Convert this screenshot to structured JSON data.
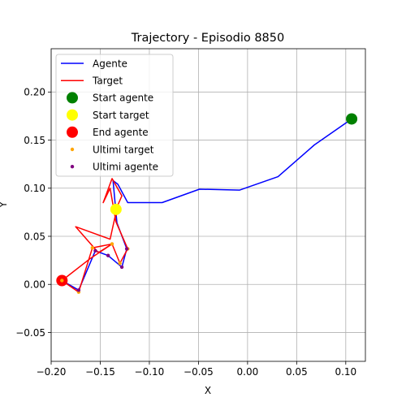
{
  "chart_data": {
    "type": "line",
    "title": "Trajectory - Episodio 8850",
    "xlabel": "X",
    "ylabel": "Y",
    "xlim": [
      -0.2,
      0.12
    ],
    "ylim": [
      -0.08,
      0.245
    ],
    "xticks": [
      -0.2,
      -0.15,
      -0.1,
      -0.05,
      0.0,
      0.05,
      0.1
    ],
    "xtick_labels": [
      "−0.20",
      "−0.15",
      "−0.10",
      "−0.05",
      "0.00",
      "0.05",
      "0.10"
    ],
    "yticks": [
      -0.05,
      0.0,
      0.05,
      0.1,
      0.15,
      0.2
    ],
    "ytick_labels": [
      "−0.05",
      "0.00",
      "0.05",
      "0.10",
      "0.15",
      "0.20"
    ],
    "grid": true,
    "legend_position": "top-left",
    "series": [
      {
        "name": "Agente",
        "kind": "line",
        "color": "#0000ff",
        "x": [
          0.106,
          0.068,
          0.031,
          -0.008,
          -0.049,
          -0.087,
          -0.122,
          -0.132,
          -0.137,
          -0.133,
          -0.123,
          -0.128,
          -0.142,
          -0.155,
          -0.172,
          -0.189
        ],
        "y": [
          0.172,
          0.145,
          0.112,
          0.098,
          0.099,
          0.085,
          0.085,
          0.104,
          0.108,
          0.064,
          0.037,
          0.018,
          0.03,
          0.035,
          -0.006,
          0.004
        ]
      },
      {
        "name": "Target",
        "kind": "line",
        "color": "#ff0000",
        "x": [
          -0.134,
          -0.128,
          -0.138,
          -0.147,
          -0.14,
          -0.134,
          -0.134,
          -0.122,
          -0.13,
          -0.138,
          -0.158,
          -0.172,
          -0.189,
          -0.16,
          -0.138,
          -0.152,
          -0.175,
          -0.14,
          -0.135,
          -0.13
        ],
        "y": [
          0.078,
          0.092,
          0.11,
          0.085,
          0.1,
          0.065,
          0.065,
          0.037,
          0.022,
          0.042,
          0.038,
          -0.008,
          0.004,
          0.027,
          0.042,
          0.033,
          0.06,
          0.047,
          0.07,
          0.078
        ]
      },
      {
        "name": "Start agente",
        "kind": "marker",
        "color": "#008000",
        "x": [
          0.106
        ],
        "y": [
          0.172
        ]
      },
      {
        "name": "Start target",
        "kind": "marker",
        "color": "#ffff00",
        "x": [
          -0.134
        ],
        "y": [
          0.078
        ]
      },
      {
        "name": "End agente",
        "kind": "marker",
        "color": "#ff0000",
        "x": [
          -0.189
        ],
        "y": [
          0.004
        ]
      },
      {
        "name": "Ultimi target",
        "kind": "small-marker",
        "color": "#ffa500",
        "x": [
          -0.189,
          -0.172,
          -0.158,
          -0.138,
          -0.13,
          -0.122
        ],
        "y": [
          0.004,
          -0.008,
          0.038,
          0.042,
          0.022,
          0.037
        ]
      },
      {
        "name": "Ultimi agente",
        "kind": "small-marker",
        "color": "#800080",
        "x": [
          -0.172,
          -0.155,
          -0.142,
          -0.128,
          -0.123
        ],
        "y": [
          -0.006,
          0.035,
          0.03,
          0.018,
          0.037
        ]
      }
    ]
  }
}
